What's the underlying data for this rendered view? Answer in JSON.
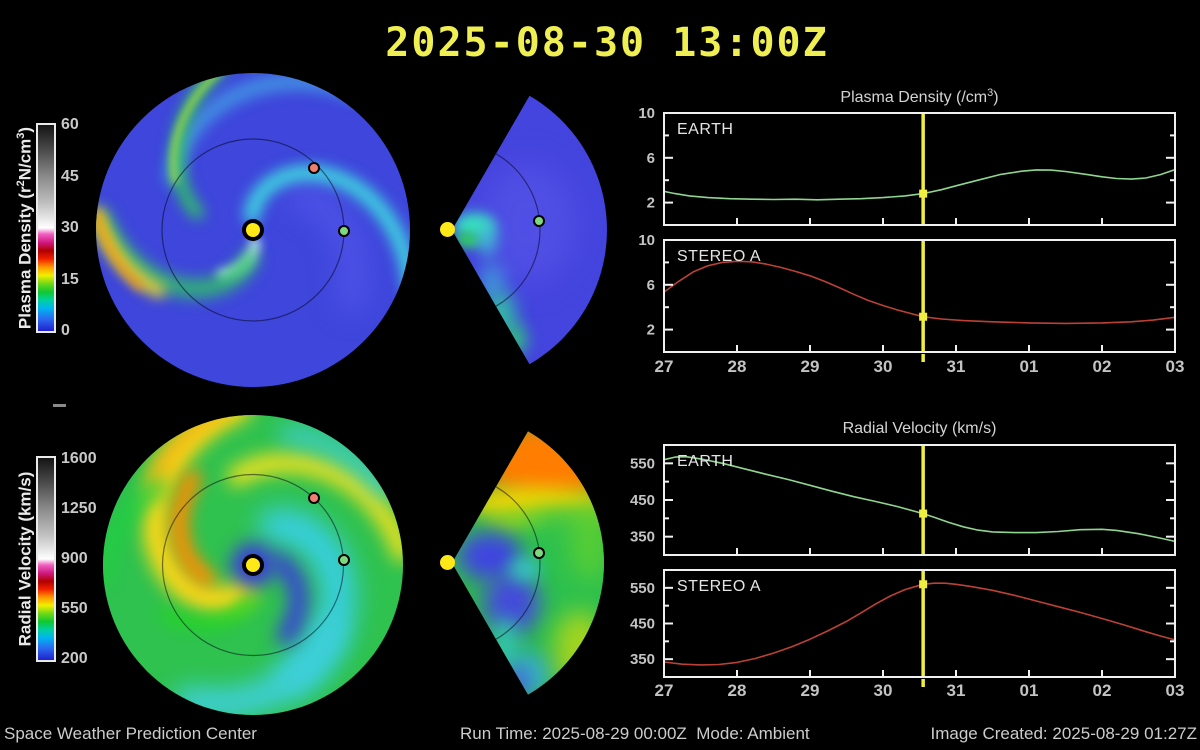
{
  "title": "2025-08-30 13:00Z",
  "footer": {
    "left": "Space Weather Prediction Center",
    "run_time": "Run Time: 2025-08-29 00:00Z  Mode: Ambient",
    "created": "Image Created: 2025-08-29 01:27Z"
  },
  "colorbars": [
    {
      "name": "plasma-density",
      "label_pre": "Plasma Density (r",
      "label_sup1": "2",
      "label_mid": "N/cm",
      "label_sup2": "3",
      "label_post": ")",
      "ticks": [
        "60",
        "45",
        "30",
        "15",
        "0"
      ]
    },
    {
      "name": "radial-velocity",
      "label_pre": "Radial Velocity (km/s)",
      "label_sup1": "",
      "label_mid": "",
      "label_sup2": "",
      "label_post": "",
      "ticks": [
        "1600",
        "1250",
        "900",
        "550",
        "200"
      ]
    }
  ],
  "markers": {
    "sun": {
      "color": "#ffe818"
    },
    "earth": {
      "color": "#7ed87e"
    },
    "stereo_a": {
      "color": "#ef8070"
    }
  },
  "chart_data": [
    {
      "type": "line",
      "title_pre": "Plasma Density (/cm",
      "title_sup": "3",
      "title_post": ")",
      "x_tick_labels": [
        "27",
        "28",
        "29",
        "30",
        "31",
        "01",
        "02",
        "03"
      ],
      "cursor_x": 3.55,
      "cursor_color": "#f0ee3e",
      "panels": [
        {
          "label": "EARTH",
          "color": "#8fd48f",
          "y_range": [
            0,
            10
          ],
          "y_ticks": [
            2,
            6,
            10
          ],
          "y_minor": [
            0,
            4,
            8
          ],
          "marker": [
            3.55,
            2.8
          ],
          "points": [
            [
              0,
              3.0
            ],
            [
              0.15,
              2.8
            ],
            [
              0.35,
              2.6
            ],
            [
              0.6,
              2.45
            ],
            [
              0.9,
              2.35
            ],
            [
              1.2,
              2.3
            ],
            [
              1.5,
              2.28
            ],
            [
              1.8,
              2.3
            ],
            [
              2.1,
              2.25
            ],
            [
              2.4,
              2.3
            ],
            [
              2.7,
              2.35
            ],
            [
              3.0,
              2.45
            ],
            [
              3.3,
              2.6
            ],
            [
              3.55,
              2.8
            ],
            [
              3.8,
              3.15
            ],
            [
              4.0,
              3.5
            ],
            [
              4.3,
              4.0
            ],
            [
              4.6,
              4.5
            ],
            [
              4.9,
              4.8
            ],
            [
              5.1,
              4.92
            ],
            [
              5.3,
              4.9
            ],
            [
              5.5,
              4.78
            ],
            [
              5.8,
              4.5
            ],
            [
              6.0,
              4.3
            ],
            [
              6.2,
              4.15
            ],
            [
              6.4,
              4.1
            ],
            [
              6.6,
              4.2
            ],
            [
              6.8,
              4.5
            ],
            [
              7,
              4.95
            ]
          ]
        },
        {
          "label": "STEREO A",
          "color": "#bb4136",
          "y_range": [
            0,
            10
          ],
          "y_ticks": [
            2,
            6,
            10
          ],
          "y_minor": [
            0,
            4,
            8
          ],
          "marker": [
            3.55,
            3.15
          ],
          "points": [
            [
              0,
              5.35
            ],
            [
              0.2,
              6.3
            ],
            [
              0.4,
              7.15
            ],
            [
              0.6,
              7.7
            ],
            [
              0.8,
              8.0
            ],
            [
              1.0,
              8.1
            ],
            [
              1.2,
              8.05
            ],
            [
              1.4,
              7.85
            ],
            [
              1.6,
              7.55
            ],
            [
              1.8,
              7.2
            ],
            [
              2.0,
              6.8
            ],
            [
              2.2,
              6.3
            ],
            [
              2.4,
              5.75
            ],
            [
              2.6,
              5.15
            ],
            [
              2.8,
              4.6
            ],
            [
              3.0,
              4.15
            ],
            [
              3.2,
              3.75
            ],
            [
              3.4,
              3.4
            ],
            [
              3.55,
              3.15
            ],
            [
              3.8,
              2.95
            ],
            [
              4.1,
              2.8
            ],
            [
              4.5,
              2.7
            ],
            [
              5.0,
              2.6
            ],
            [
              5.5,
              2.55
            ],
            [
              6.0,
              2.6
            ],
            [
              6.4,
              2.7
            ],
            [
              6.7,
              2.85
            ],
            [
              7,
              3.1
            ]
          ]
        }
      ]
    },
    {
      "type": "line",
      "title_pre": "Radial Velocity (km/s)",
      "title_sup": "",
      "title_post": "",
      "x_tick_labels": [
        "27",
        "28",
        "29",
        "30",
        "31",
        "01",
        "02",
        "03"
      ],
      "cursor_x": 3.55,
      "cursor_color": "#f0ee3e",
      "panels": [
        {
          "label": "EARTH",
          "color": "#8fd48f",
          "y_range": [
            300,
            600
          ],
          "y_ticks": [
            350,
            450,
            550
          ],
          "y_minor": [
            300,
            400,
            500,
            600
          ],
          "marker": [
            3.55,
            413
          ],
          "points": [
            [
              0,
              560
            ],
            [
              0.15,
              567
            ],
            [
              0.3,
              568
            ],
            [
              0.5,
              562
            ],
            [
              0.8,
              550
            ],
            [
              1.1,
              535
            ],
            [
              1.4,
              520
            ],
            [
              1.7,
              506
            ],
            [
              2.0,
              490
            ],
            [
              2.3,
              474
            ],
            [
              2.6,
              459
            ],
            [
              2.9,
              446
            ],
            [
              3.2,
              432
            ],
            [
              3.55,
              413
            ],
            [
              3.7,
              403
            ],
            [
              3.9,
              389
            ],
            [
              4.1,
              377
            ],
            [
              4.3,
              368
            ],
            [
              4.5,
              363
            ],
            [
              4.8,
              361
            ],
            [
              5.1,
              361
            ],
            [
              5.4,
              364
            ],
            [
              5.7,
              369
            ],
            [
              6.0,
              370
            ],
            [
              6.2,
              367
            ],
            [
              6.5,
              358
            ],
            [
              6.8,
              346
            ],
            [
              7,
              337
            ]
          ]
        },
        {
          "label": "STEREO A",
          "color": "#bb4136",
          "y_range": [
            300,
            600
          ],
          "y_ticks": [
            350,
            450,
            550
          ],
          "y_minor": [
            300,
            400,
            500,
            600
          ],
          "marker": [
            3.55,
            560
          ],
          "points": [
            [
              0,
              342
            ],
            [
              0.25,
              336
            ],
            [
              0.5,
              334
            ],
            [
              0.75,
              335
            ],
            [
              1.0,
              341
            ],
            [
              1.25,
              352
            ],
            [
              1.5,
              367
            ],
            [
              1.75,
              385
            ],
            [
              2.0,
              406
            ],
            [
              2.25,
              430
            ],
            [
              2.5,
              456
            ],
            [
              2.7,
              480
            ],
            [
              2.9,
              505
            ],
            [
              3.1,
              527
            ],
            [
              3.3,
              545
            ],
            [
              3.5,
              557
            ],
            [
              3.55,
              560
            ],
            [
              3.7,
              563
            ],
            [
              3.85,
              563
            ],
            [
              4.0,
              560
            ],
            [
              4.2,
              554
            ],
            [
              4.5,
              543
            ],
            [
              4.8,
              529
            ],
            [
              5.1,
              513
            ],
            [
              5.4,
              497
            ],
            [
              5.7,
              481
            ],
            [
              6.0,
              464
            ],
            [
              6.3,
              446
            ],
            [
              6.6,
              427
            ],
            [
              6.8,
              415
            ],
            [
              7,
              404
            ]
          ]
        }
      ]
    }
  ]
}
